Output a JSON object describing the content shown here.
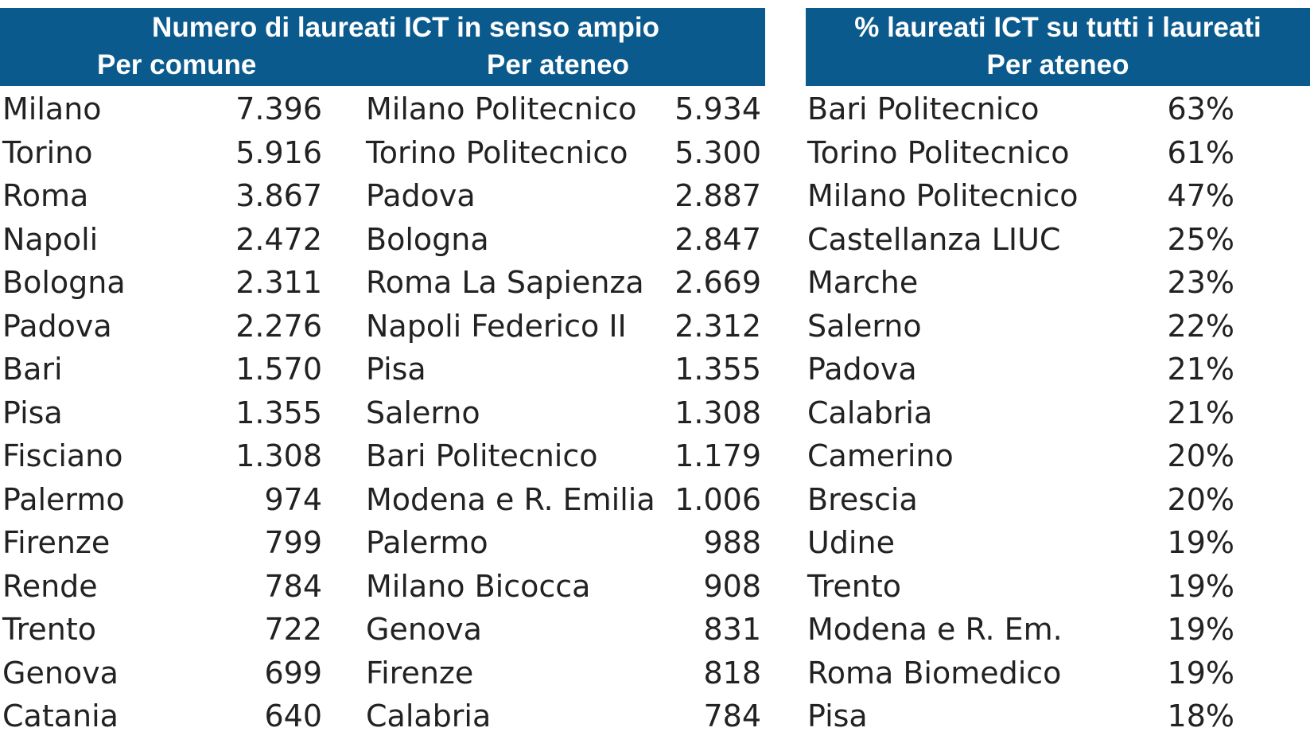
{
  "left_header": {
    "title": "Numero di laureati ICT in senso ampio",
    "sub_comune": "Per comune",
    "sub_ateneo": "Per ateneo"
  },
  "right_header": {
    "title": "% laureati ICT su tutti i laureati",
    "sub_ateneo": "Per ateneo"
  },
  "colors": {
    "header_bg": "#0b5a8e",
    "header_text": "#ffffff",
    "body_text": "#222222"
  },
  "per_comune": [
    {
      "name": "Milano",
      "value": "7.396"
    },
    {
      "name": "Torino",
      "value": "5.916"
    },
    {
      "name": "Roma",
      "value": "3.867"
    },
    {
      "name": "Napoli",
      "value": "2.472"
    },
    {
      "name": "Bologna",
      "value": "2.311"
    },
    {
      "name": "Padova",
      "value": "2.276"
    },
    {
      "name": "Bari",
      "value": "1.570"
    },
    {
      "name": "Pisa",
      "value": "1.355"
    },
    {
      "name": "Fisciano",
      "value": "1.308"
    },
    {
      "name": "Palermo",
      "value": "974"
    },
    {
      "name": "Firenze",
      "value": "799"
    },
    {
      "name": "Rende",
      "value": "784"
    },
    {
      "name": "Trento",
      "value": "722"
    },
    {
      "name": "Genova",
      "value": "699"
    },
    {
      "name": "Catania",
      "value": "640"
    }
  ],
  "per_ateneo": [
    {
      "name": "Milano Politecnico",
      "value": "5.934"
    },
    {
      "name": "Torino Politecnico",
      "value": "5.300"
    },
    {
      "name": "Padova",
      "value": "2.887"
    },
    {
      "name": "Bologna",
      "value": "2.847"
    },
    {
      "name": "Roma La Sapienza",
      "value": "2.669"
    },
    {
      "name": "Napoli Federico II",
      "value": "2.312"
    },
    {
      "name": "Pisa",
      "value": "1.355"
    },
    {
      "name": "Salerno",
      "value": "1.308"
    },
    {
      "name": "Bari Politecnico",
      "value": "1.179"
    },
    {
      "name": "Modena e R. Emilia",
      "value": "1.006"
    },
    {
      "name": "Palermo",
      "value": "988"
    },
    {
      "name": "Milano Bicocca",
      "value": "908"
    },
    {
      "name": "Genova",
      "value": "831"
    },
    {
      "name": "Firenze",
      "value": "818"
    },
    {
      "name": "Calabria",
      "value": "784"
    }
  ],
  "pct_ateneo": [
    {
      "name": "Bari Politecnico",
      "value": "63%"
    },
    {
      "name": "Torino Politecnico",
      "value": "61%"
    },
    {
      "name": "Milano Politecnico",
      "value": "47%"
    },
    {
      "name": "Castellanza LIUC",
      "value": "25%"
    },
    {
      "name": "Marche",
      "value": "23%"
    },
    {
      "name": "Salerno",
      "value": "22%"
    },
    {
      "name": "Padova",
      "value": "21%"
    },
    {
      "name": "Calabria",
      "value": "21%"
    },
    {
      "name": "Camerino",
      "value": "20%"
    },
    {
      "name": "Brescia",
      "value": "20%"
    },
    {
      "name": "Udine",
      "value": "19%"
    },
    {
      "name": "Trento",
      "value": "19%"
    },
    {
      "name": "Modena e R. Em.",
      "value": "19%"
    },
    {
      "name": "Roma Biomedico",
      "value": "19%"
    },
    {
      "name": "Pisa",
      "value": "18%"
    }
  ]
}
